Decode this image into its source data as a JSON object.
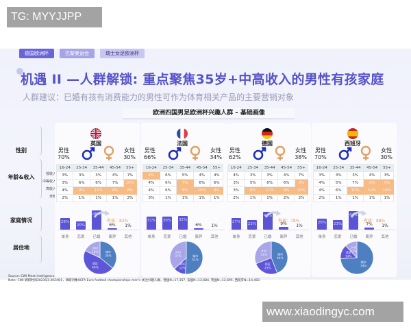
{
  "watermarks": {
    "top_left": "TG: MYYJJPP",
    "bottom_right": "www.xiaodingyc.com"
  },
  "tags": [
    "德国欧洲杯",
    "巴黎奥运会",
    "瑞士女足欧洲杯"
  ],
  "title": "机遇 II —人群解锁: 重点聚焦35岁+中高收入的男性有孩家庭",
  "subtitle": "人群建议：已婚有孩有消费能力的男性可作为体育相关产品的主要营销对象",
  "section_head": "欧洲四国男足欧洲杯兴趣人群 – 基础画像",
  "row_labels": {
    "gender": "性别",
    "age_income": "年龄&收入",
    "family": "家庭情况",
    "residence": "居住地"
  },
  "income_labels": [
    "低收入",
    "中等收入",
    "高收入",
    "未知"
  ],
  "age_labels": [
    "16-24",
    "25-34",
    "35-44",
    "45-54",
    "55+"
  ],
  "family_categories": [
    "单身",
    "恋爱",
    "已婚",
    "离异",
    "其他"
  ],
  "male_label": "男性",
  "female_label": "女性",
  "has_kids_prefix": "有孩：",
  "residence_labels": {
    "city": "城市",
    "suburb": "郊区",
    "rural": "乡村"
  },
  "footer": {
    "source": "Source: CWI Meet Intelligence",
    "note": "Note: CWI 调研时间2023Q3-2024Q1，调研对象UEFA Euro football championships men's 关注兴趣人群，德国N=17,357, 法国N=12,684, 英国N=12,695, 西班牙N=14,483"
  },
  "colors": {
    "accent": "#5653c8",
    "bar": "#5b55d6",
    "highlight": "#f7bb85",
    "city": "#4e7fc0",
    "suburb": "#5d56d8",
    "rural": "#a9a6e8",
    "male": "#1f2fb5",
    "female": "#e0a060"
  },
  "countries": [
    {
      "name": "英国",
      "flag": "uk",
      "male": "70%",
      "female": "30%",
      "grid": [
        [
          "3%",
          "3%",
          "3%",
          "4%",
          "7%"
        ],
        [
          "3%",
          "6%",
          "6%",
          "7%",
          "10%"
        ],
        [
          "4%",
          "9%",
          "11%",
          "8%",
          "6%"
        ],
        [
          "2%",
          "1%",
          "1%",
          "1%",
          "2%"
        ]
      ],
      "hl": [
        [
          0,
          0,
          0,
          0,
          0
        ],
        [
          0,
          0,
          0,
          0,
          1
        ],
        [
          0,
          1,
          1,
          1,
          1
        ],
        [
          0,
          0,
          0,
          0,
          0
        ]
      ],
      "family": [
        "28%",
        "20%",
        "45%",
        "6%",
        "1%"
      ],
      "family_vals": [
        28,
        20,
        45,
        6,
        1
      ],
      "has_kids": "82%",
      "residence": {
        "city": "36%",
        "suburb": "46%",
        "rural": "18%"
      },
      "res_vals": [
        36,
        46,
        18
      ]
    },
    {
      "name": "法国",
      "flag": "fr",
      "male": "66%",
      "female": "34%",
      "grid": [
        [
          "8%",
          "6%",
          "5%",
          "4%",
          "4%"
        ],
        [
          "4%",
          "6%",
          "7%",
          "6%",
          "6%"
        ],
        [
          "4%",
          "6%",
          "9%",
          "10%",
          "8%"
        ],
        [
          "3%",
          "1%",
          "1%",
          "1%",
          "1%"
        ]
      ],
      "hl": [
        [
          1,
          0,
          0,
          0,
          0
        ],
        [
          0,
          0,
          1,
          0,
          0
        ],
        [
          0,
          0,
          1,
          1,
          1
        ],
        [
          0,
          0,
          0,
          0,
          0
        ]
      ],
      "family": [
        "31%",
        "30%",
        "32%",
        "6%",
        "1%"
      ],
      "family_vals": [
        31,
        30,
        32,
        6,
        1
      ],
      "has_kids": "",
      "residence": {
        "city": "51%",
        "suburb": "12%",
        "rural": "37%"
      },
      "res_vals": [
        51,
        12,
        37
      ]
    },
    {
      "name": "德国",
      "flag": "de",
      "male": "62%",
      "female": "38%",
      "grid": [
        [
          "4%",
          "3%",
          "3%",
          "4%",
          "7%"
        ],
        [
          "3%",
          "5%",
          "6%",
          "6%",
          "9%"
        ],
        [
          "3%",
          "8%",
          "11%",
          "9%",
          "10%"
        ],
        [
          "2%",
          "1%",
          "1%",
          "2%",
          "2%"
        ]
      ],
      "hl": [
        [
          0,
          0,
          0,
          0,
          0
        ],
        [
          0,
          0,
          0,
          0,
          1
        ],
        [
          0,
          1,
          1,
          1,
          1
        ],
        [
          0,
          0,
          0,
          0,
          0
        ]
      ],
      "family": [
        "27%",
        "22%",
        "42%",
        "9%",
        "1%"
      ],
      "family_vals": [
        27,
        22,
        42,
        9,
        1
      ],
      "has_kids": "78%",
      "residence": {
        "city": "44%",
        "suburb": "25%",
        "rural": "31%"
      },
      "res_vals": [
        44,
        25,
        31
      ]
    },
    {
      "name": "西班牙",
      "flag": "es",
      "male": "70%",
      "female": "30%",
      "grid": [
        [
          "3%",
          "3%",
          "3%",
          "4%",
          "3%"
        ],
        [
          "4%",
          "5%",
          "7%",
          "9%",
          "9%"
        ],
        [
          "4%",
          "6%",
          "10%",
          "12%",
          "10%"
        ],
        [
          "2%",
          "1%",
          "1%",
          "1%",
          "1%"
        ]
      ],
      "hl": [
        [
          0,
          0,
          0,
          0,
          0
        ],
        [
          0,
          0,
          0,
          1,
          1
        ],
        [
          0,
          0,
          1,
          1,
          1
        ],
        [
          0,
          0,
          0,
          0,
          0
        ]
      ],
      "family": [
        "26%",
        "23%",
        "44%",
        "7%",
        "1%"
      ],
      "family_vals": [
        26,
        23,
        44,
        7,
        1
      ],
      "has_kids": "88%",
      "residence": {
        "city": "74%",
        "suburb": "14%",
        "rural": "12%"
      },
      "res_vals": [
        74,
        14,
        12
      ]
    }
  ],
  "chart_data": [
    {
      "type": "bar",
      "title": "家庭情况",
      "categories": [
        "单身",
        "恋爱",
        "已婚",
        "离异",
        "其他"
      ],
      "series": [
        {
          "name": "英国",
          "values": [
            28,
            20,
            45,
            6,
            1
          ]
        },
        {
          "name": "法国",
          "values": [
            31,
            30,
            32,
            6,
            1
          ]
        },
        {
          "name": "德国",
          "values": [
            27,
            22,
            42,
            9,
            1
          ]
        },
        {
          "name": "西班牙",
          "values": [
            26,
            23,
            44,
            7,
            1
          ]
        }
      ],
      "annotations": {
        "英国 有孩": 82,
        "德国 有孩": 78,
        "西班牙 有孩": 88
      }
    },
    {
      "type": "pie",
      "title": "居住地",
      "categories": [
        "城市",
        "郊区",
        "乡村"
      ],
      "series": [
        {
          "name": "英国",
          "values": [
            36,
            46,
            18
          ]
        },
        {
          "name": "法国",
          "values": [
            51,
            12,
            37
          ]
        },
        {
          "name": "德国",
          "values": [
            44,
            25,
            31
          ]
        },
        {
          "name": "西班牙",
          "values": [
            74,
            14,
            12
          ]
        }
      ]
    },
    {
      "type": "table",
      "title": "年龄&收入",
      "columns": [
        "16-24",
        "25-34",
        "35-44",
        "45-54",
        "55+"
      ],
      "rows": [
        "低收入",
        "中等收入",
        "高收入",
        "未知"
      ]
    },
    {
      "type": "table",
      "title": "性别",
      "series": [
        {
          "name": "英国",
          "male": 70,
          "female": 30
        },
        {
          "name": "法国",
          "male": 66,
          "female": 34
        },
        {
          "name": "德国",
          "male": 62,
          "female": 38
        },
        {
          "name": "西班牙",
          "male": 70,
          "female": 30
        }
      ]
    }
  ]
}
